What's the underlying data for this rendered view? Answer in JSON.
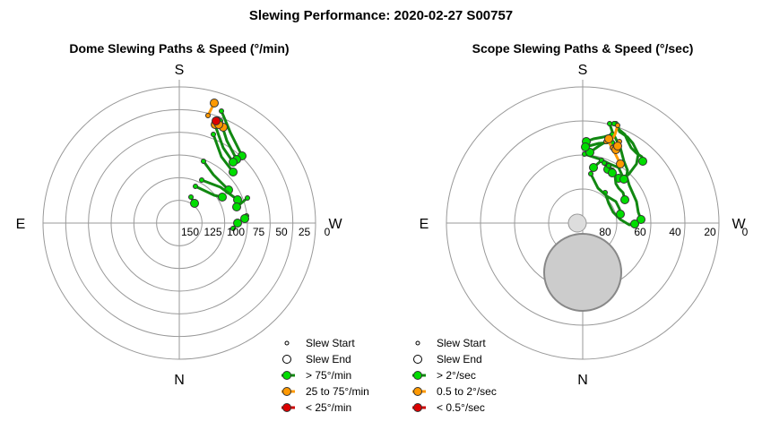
{
  "title": "Slewing Performance: 2020-02-27 S00757",
  "colors": {
    "fast": "#00dd00",
    "medium": "#ff9900",
    "slow": "#dd0000",
    "fast_line": "#118811",
    "medium_line": "#ff9900",
    "slow_line": "#cc0000",
    "grid": "#999999",
    "zone": "#cccccc"
  },
  "chart_data": [
    {
      "type": "polar-path",
      "title": "Dome Slewing Paths & Speed (°/min)",
      "directions": {
        "top": "S",
        "bottom": "N",
        "left": "E",
        "right": "W"
      },
      "r_ticks": [
        "150",
        "125",
        "100",
        "75",
        "50",
        "25",
        "0"
      ],
      "r_tick_values": [
        150,
        125,
        100,
        75,
        50,
        25,
        0
      ],
      "r_range": [
        0,
        175
      ],
      "legend": {
        "start": "Slew Start",
        "end": "Slew End",
        "fast": "> 75°/min",
        "medium": "25 to 75°/min",
        "slow": "< 25°/min"
      },
      "slews": [
        {
          "speed": "fast",
          "path": [
            [
              147,
              49
            ],
            [
              157,
              73
            ],
            [
              170,
              99
            ]
          ]
        },
        {
          "speed": "fast",
          "path": [
            [
              146,
              60
            ],
            [
              153,
              82
            ],
            [
              164,
              103
            ]
          ]
        },
        {
          "speed": "fast",
          "path": [
            [
              140,
              65
            ],
            [
              149,
              90
            ],
            [
              160,
              106
            ]
          ]
        },
        {
          "speed": "fast",
          "path": [
            [
              138,
              75
            ],
            [
              147,
              100
            ],
            [
              160,
              117
            ]
          ]
        },
        {
          "speed": "fast",
          "path": [
            [
              127,
              105
            ],
            [
              138,
              120
            ],
            [
              155,
              137
            ]
          ]
        },
        {
          "speed": "fast",
          "path": [
            [
              125,
              126
            ],
            [
              146,
              134
            ],
            [
              165,
              148
            ]
          ]
        },
        {
          "speed": "fast",
          "path": [
            [
              118,
              133
            ],
            [
              139,
              143
            ],
            [
              148,
              145
            ]
          ]
        },
        {
          "speed": "fast",
          "path": [
            [
              113,
              145
            ],
            [
              117,
              152
            ]
          ]
        },
        {
          "speed": "fast",
          "path": [
            [
              176,
              146
            ],
            [
              164,
              156
            ]
          ]
        },
        {
          "speed": "fast",
          "path": [
            [
              175,
              166
            ],
            [
              173,
              169
            ]
          ]
        },
        {
          "speed": "fast",
          "path": [
            [
              160,
              180
            ],
            [
              165,
              174
            ]
          ]
        },
        {
          "speed": "medium",
          "path": [
            [
              132,
              54
            ],
            [
              139,
              40
            ]
          ]
        },
        {
          "speed": "medium",
          "path": [
            [
              141,
              58
            ],
            [
              141,
              61
            ],
            [
              140,
              64
            ]
          ]
        },
        {
          "speed": "medium",
          "path": [
            [
              147,
              64
            ],
            [
              148,
              66
            ],
            [
              149,
              67
            ]
          ]
        },
        {
          "speed": "medium",
          "path": [
            [
              143,
              63
            ],
            [
              144,
              64
            ]
          ]
        },
        {
          "speed": "slow",
          "path": [
            [
              143,
              58
            ],
            [
              141,
              60
            ]
          ]
        }
      ]
    },
    {
      "type": "polar-path",
      "title": "Scope Slewing Paths & Speed (°/sec)",
      "directions": {
        "top": "S",
        "bottom": "N",
        "left": "E",
        "right": "W"
      },
      "r_ticks": [
        "80",
        "60",
        "40",
        "20",
        "0"
      ],
      "r_tick_values": [
        80,
        60,
        40,
        20,
        0
      ],
      "r_range": [
        0,
        90
      ],
      "legend": {
        "start": "Slew Start",
        "end": "Slew End",
        "fast": "> 2°/sec",
        "medium": "0.5 to 2°/sec",
        "slow": "< 0.5°/sec"
      },
      "slews": [
        {
          "speed": "fast",
          "path": [
            [
              130,
              63
            ],
            [
              133,
              72
            ],
            [
              138,
              82
            ],
            [
              142,
              90
            ],
            [
              146,
              105
            ],
            [
              150,
              115
            ],
            [
              149,
              122
            ],
            [
              152,
              132
            ],
            [
              160,
              150
            ],
            [
              162,
              162
            ],
            [
              165,
              170
            ]
          ]
        },
        {
          "speed": "fast",
          "path": [
            [
              137,
              63
            ],
            [
              141,
              70
            ],
            [
              147,
              75
            ],
            [
              150,
              82
            ],
            [
              154,
              90
            ],
            [
              160,
              96
            ],
            [
              166,
              100
            ],
            [
              167,
              105
            ]
          ]
        },
        {
          "speed": "fast",
          "path": [
            [
              135,
              63
            ],
            [
              139,
              65
            ],
            [
              141,
              72
            ],
            [
              150,
              78
            ],
            [
              156,
              85
            ],
            [
              162,
              97
            ],
            [
              160,
              108
            ],
            [
              151,
              120
            ],
            [
              140,
              124
            ]
          ]
        },
        {
          "speed": "fast",
          "path": [
            [
              133,
              115
            ],
            [
              136,
              121
            ],
            [
              137,
              130
            ],
            [
              140,
              135
            ],
            [
              145,
              140
            ],
            [
              147,
              148
            ]
          ]
        },
        {
          "speed": "fast",
          "path": [
            [
              125,
              140
            ],
            [
              129,
              152
            ],
            [
              134,
              162
            ],
            [
              142,
              170
            ],
            [
              152,
              176
            ],
            [
              158,
              175
            ]
          ]
        },
        {
          "speed": "fast",
          "path": [
            [
              102,
              97
            ],
            [
              120,
              103
            ],
            [
              130,
              108
            ],
            [
              140,
              112
            ],
            [
              146,
              125
            ]
          ]
        },
        {
          "speed": "fast",
          "path": [
            [
              109,
              119
            ],
            [
              117,
              135
            ],
            [
              127,
              144
            ],
            [
              137,
              150
            ],
            [
              141,
              158
            ],
            [
              142,
              164
            ]
          ]
        },
        {
          "speed": "fast",
          "path": [
            [
              133,
              75
            ],
            [
              123,
              78
            ],
            [
              112,
              80
            ],
            [
              104,
              83
            ]
          ]
        },
        {
          "speed": "fast",
          "path": [
            [
              131,
              80
            ],
            [
              118,
              88
            ],
            [
              108,
              95
            ]
          ]
        },
        {
          "speed": "fast",
          "path": [
            [
              133,
              84
            ],
            [
              118,
              85
            ],
            [
              103,
              89
            ]
          ]
        },
        {
          "speed": "fast",
          "path": [
            [
              121,
              104
            ],
            [
              112,
              112
            ]
          ]
        },
        {
          "speed": "fast",
          "path": [
            [
              124,
              107
            ],
            [
              128,
              114
            ]
          ]
        },
        {
          "speed": "fast",
          "path": [
            [
              129,
              110
            ],
            [
              133,
              118
            ]
          ]
        },
        {
          "speed": "medium",
          "path": [
            [
              139,
              65
            ],
            [
              136,
              75
            ],
            [
              130,
              85
            ],
            [
              136,
              96
            ],
            [
              142,
              108
            ]
          ]
        },
        {
          "speed": "medium",
          "path": [
            [
              133,
              90
            ],
            [
              137,
              92
            ]
          ]
        },
        {
          "speed": "medium",
          "path": [
            [
              126,
              83
            ],
            [
              129,
              80
            ]
          ]
        },
        {
          "speed": "medium",
          "path": [
            [
              141,
              83
            ],
            [
              139,
              88
            ]
          ]
        }
      ]
    }
  ]
}
